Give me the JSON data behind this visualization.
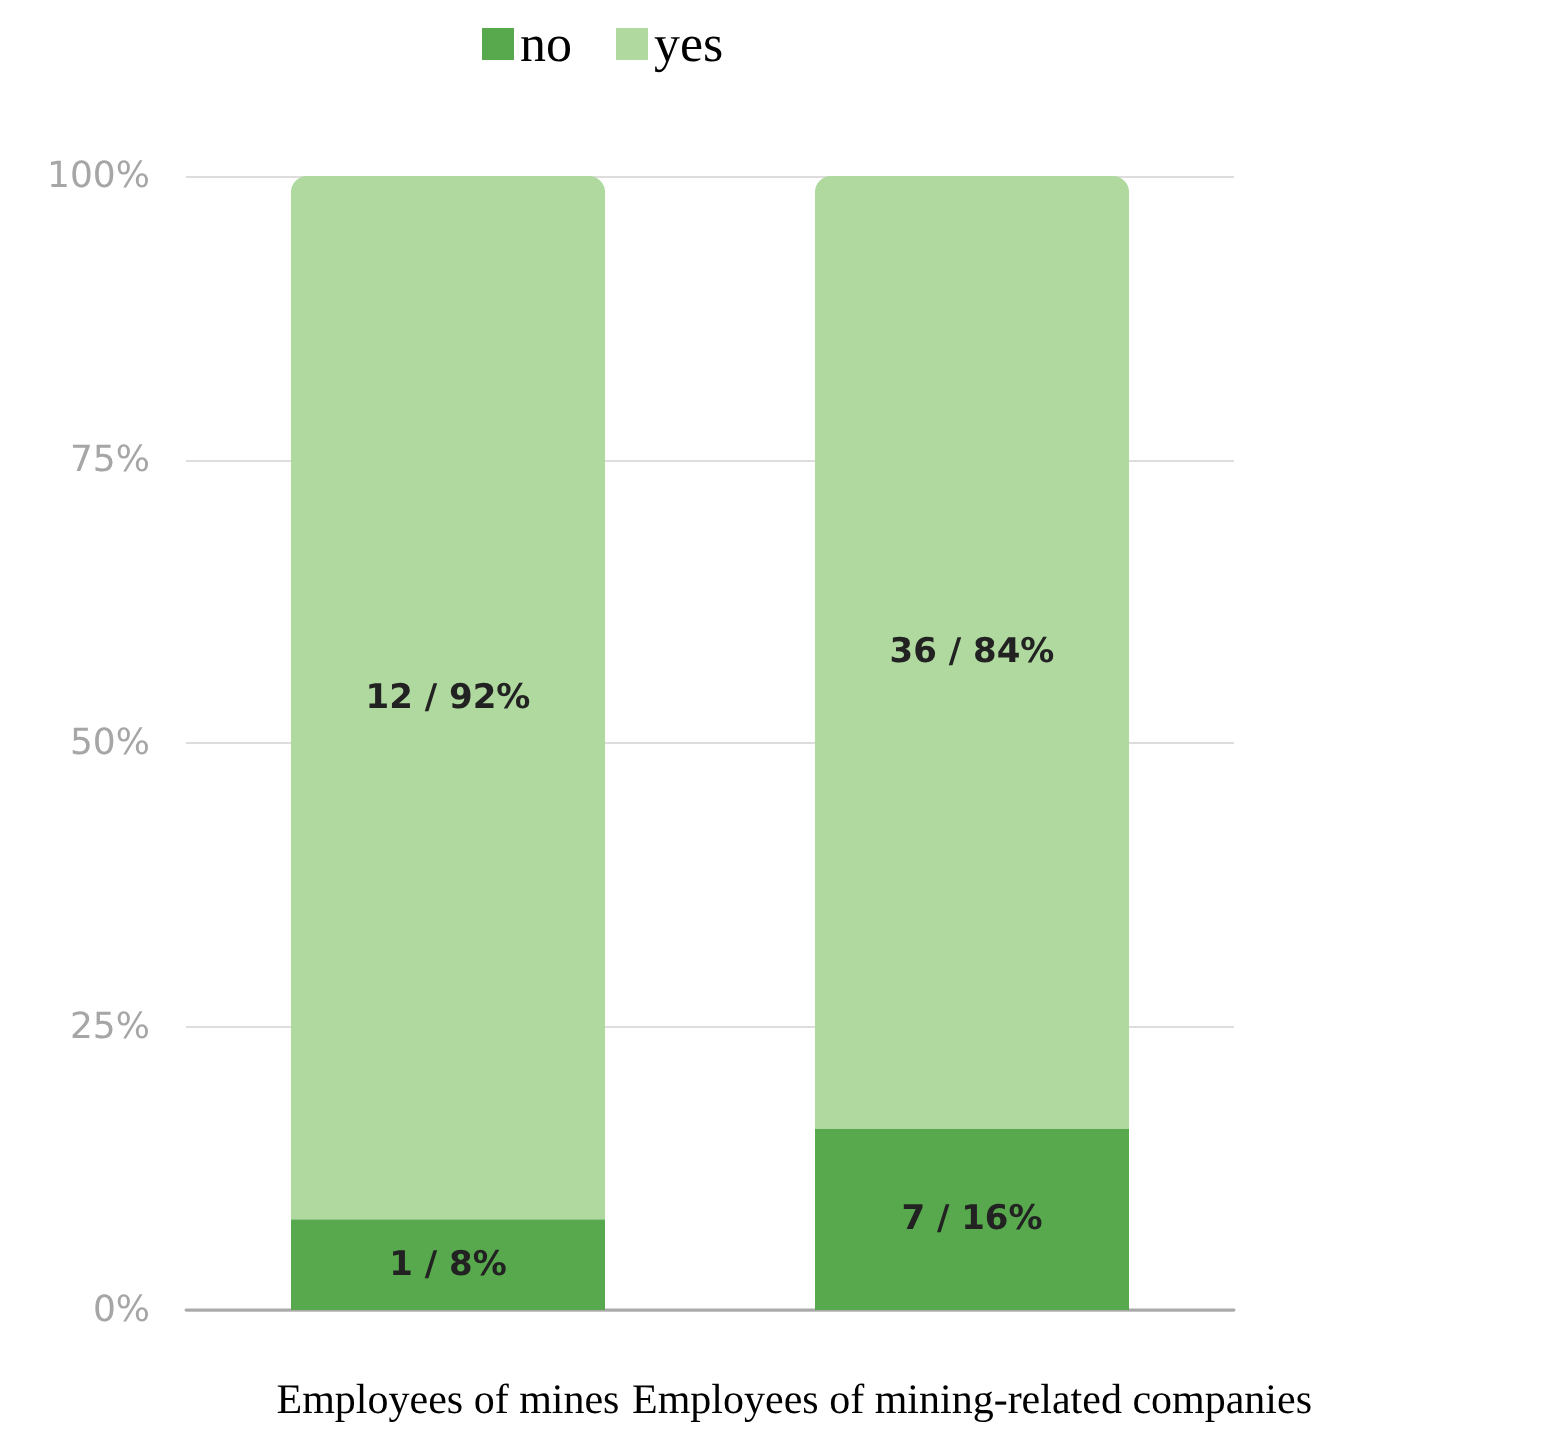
{
  "chart_data": {
    "type": "bar",
    "categories": [
      "Employees of mines",
      "Employees of mining-related companies"
    ],
    "series": [
      {
        "name": "no",
        "color": "#58a94d",
        "values": [
          8,
          16
        ],
        "value_labels": [
          "1 / 8%",
          "7 / 16%"
        ]
      },
      {
        "name": "yes",
        "color": "#afd99e",
        "values": [
          92,
          84
        ],
        "value_labels": [
          "12 / 92%",
          "36 / 84%"
        ]
      }
    ],
    "stacked": true,
    "ylim": [
      0,
      100
    ],
    "yticks": [
      {
        "value": 0,
        "label": "0%"
      },
      {
        "value": 25,
        "label": "25%"
      },
      {
        "value": 50,
        "label": "50%"
      },
      {
        "value": 75,
        "label": "75%"
      },
      {
        "value": 100,
        "label": "100%"
      }
    ],
    "grid": "y",
    "legend": "top"
  }
}
